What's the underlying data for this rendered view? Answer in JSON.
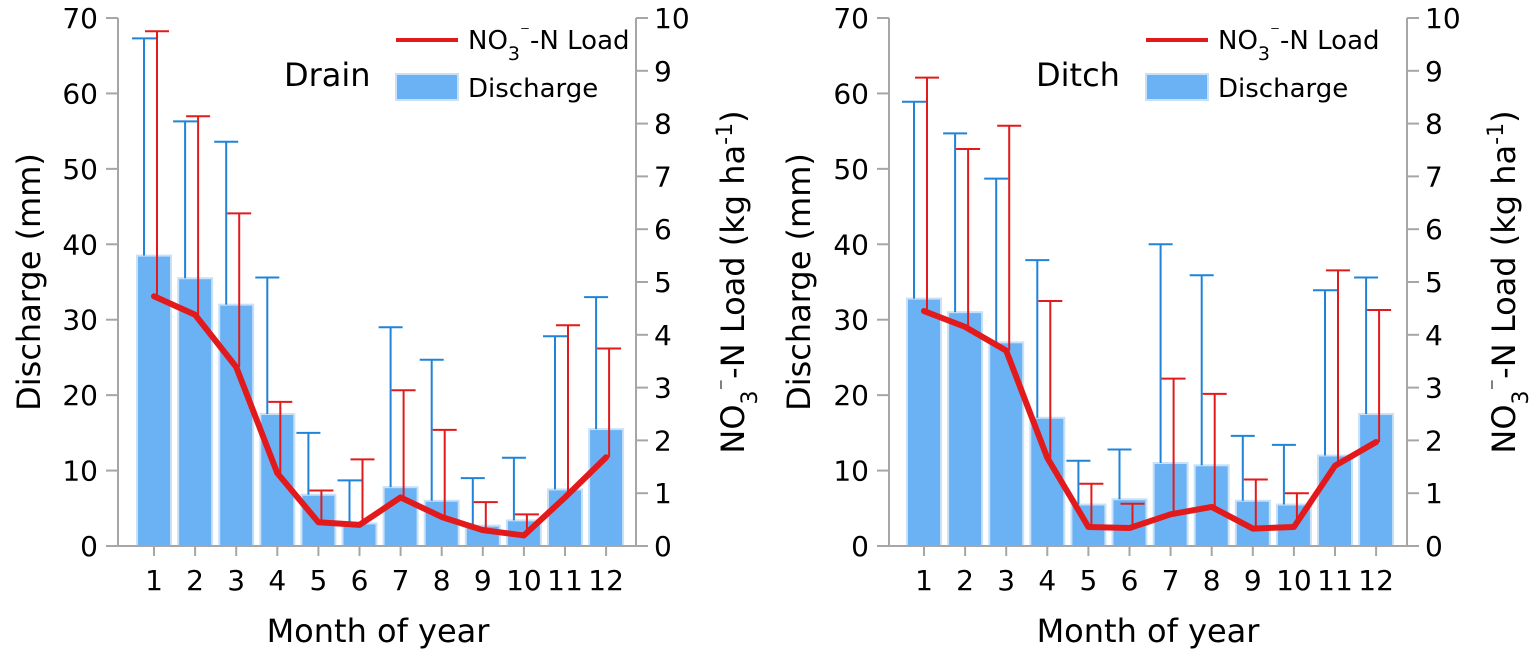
{
  "chart_data": [
    {
      "type": "bar",
      "panel_label": "Drain",
      "categories": [
        "1",
        "2",
        "3",
        "4",
        "5",
        "6",
        "7",
        "8",
        "9",
        "10",
        "11",
        "12"
      ],
      "xlabel": "Month of year",
      "ylabel": "Discharge (mm)",
      "y2label_parts": [
        "NO",
        "3",
        "⁻",
        "-N Load (kg ha",
        "-1",
        ")"
      ],
      "ylim": [
        0,
        70
      ],
      "yticks": [
        "0",
        "10",
        "20",
        "30",
        "40",
        "50",
        "60",
        "70"
      ],
      "y2lim": [
        0,
        10
      ],
      "y2ticks": [
        "0",
        "1",
        "2",
        "3",
        "4",
        "5",
        "6",
        "7",
        "8",
        "9",
        "10"
      ],
      "legend": {
        "load_parts": [
          "NO",
          "3",
          "⁻",
          "-N Load"
        ],
        "discharge": "Discharge"
      },
      "colors": {
        "bar": "#6bb2f5",
        "bar_edge": "#c9e1f7",
        "bar_error": "#1f84d8",
        "line": "#e31a1c",
        "axis": "#a6a6a6"
      },
      "series": [
        {
          "name": "Discharge",
          "axis": "left",
          "values": [
            38.5,
            35.5,
            32,
            17.5,
            6.8,
            3,
            7.8,
            6,
            2.7,
            3.4,
            7.5,
            15.5
          ],
          "error_upper": [
            67.3,
            56.3,
            53.6,
            35.6,
            15,
            8.7,
            29,
            24.7,
            9,
            11.7,
            27.8,
            33
          ]
        },
        {
          "name": "NO3-N Load",
          "axis": "right",
          "values": [
            4.73,
            4.38,
            3.39,
            1.38,
            0.45,
            0.4,
            0.92,
            0.55,
            0.3,
            0.2,
            0.92,
            1.68
          ],
          "error_upper": [
            9.75,
            8.14,
            6.3,
            2.73,
            1.05,
            1.64,
            2.95,
            2.2,
            0.83,
            0.6,
            4.18,
            3.74
          ]
        }
      ]
    },
    {
      "type": "bar",
      "panel_label": "Ditch",
      "categories": [
        "1",
        "2",
        "3",
        "4",
        "5",
        "6",
        "7",
        "8",
        "9",
        "10",
        "11",
        "12"
      ],
      "xlabel": "Month of year",
      "ylabel": "Discharge (mm)",
      "y2label_parts": [
        "NO",
        "3",
        "⁻",
        "-N Load (kg ha",
        "-1",
        ")"
      ],
      "ylim": [
        0,
        70
      ],
      "yticks": [
        "0",
        "10",
        "20",
        "30",
        "40",
        "50",
        "60",
        "70"
      ],
      "y2lim": [
        0,
        10
      ],
      "y2ticks": [
        "0",
        "1",
        "2",
        "3",
        "4",
        "5",
        "6",
        "7",
        "8",
        "9",
        "10"
      ],
      "legend": {
        "load_parts": [
          "NO",
          "3",
          "⁻",
          "-N Load"
        ],
        "discharge": "Discharge"
      },
      "colors": {
        "bar": "#6bb2f5",
        "bar_edge": "#c9e1f7",
        "bar_error": "#1f84d8",
        "line": "#e31a1c",
        "axis": "#a6a6a6"
      },
      "series": [
        {
          "name": "Discharge",
          "axis": "left",
          "values": [
            32.8,
            31,
            27,
            17,
            5.5,
            6.2,
            11,
            10.7,
            6,
            5.5,
            12,
            17.5
          ],
          "error_upper": [
            58.9,
            54.7,
            48.7,
            37.9,
            11.3,
            12.8,
            40,
            35.9,
            14.6,
            13.4,
            33.9,
            35.6
          ]
        },
        {
          "name": "NO3-N Load",
          "axis": "right",
          "values": [
            4.45,
            4.15,
            3.7,
            1.67,
            0.36,
            0.34,
            0.6,
            0.74,
            0.33,
            0.36,
            1.52,
            1.97
          ],
          "error_upper": [
            8.87,
            7.52,
            7.96,
            4.64,
            1.18,
            0.8,
            3.17,
            2.88,
            1.26,
            1.0,
            5.22,
            4.47
          ]
        }
      ]
    }
  ]
}
